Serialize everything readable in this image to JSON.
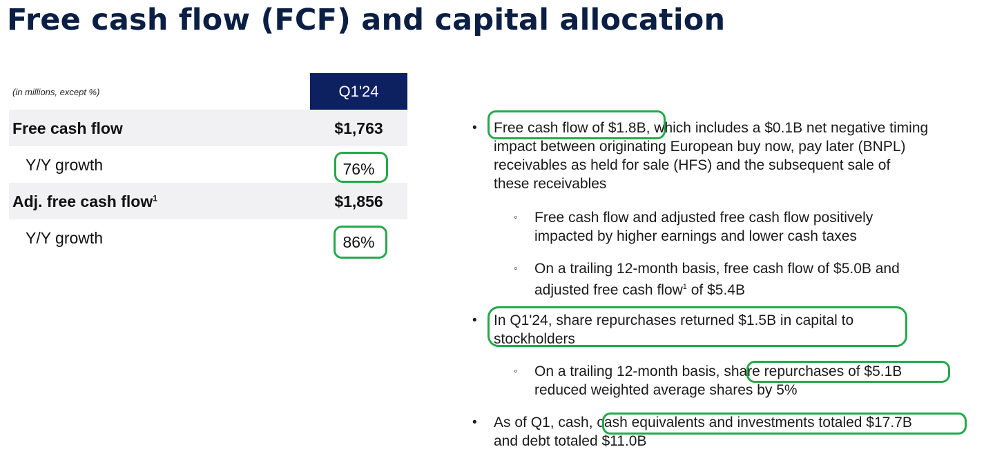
{
  "title": "Free cash flow (FCF) and capital allocation",
  "table": {
    "units_note": "(in millions, except %)",
    "column_header": "Q1'24",
    "rows": [
      {
        "label": "Free cash flow",
        "sup": "",
        "value": "$1,763"
      },
      {
        "label": "Y/Y growth",
        "sup": "",
        "value": "76%"
      },
      {
        "label": "Adj. free cash flow",
        "sup": "1",
        "value": "$1,856"
      },
      {
        "label": "Y/Y growth",
        "sup": "",
        "value": "86%"
      }
    ]
  },
  "bullets": {
    "b1": {
      "line1_highlight": "Free cash flow of $1.8B",
      "line1_rest": ", which includes a $0.1B net negative timing",
      "line2": "impact between originating European buy now, pay later (BNPL)",
      "line3": "receivables as held for sale (HFS) and the subsequent sale of",
      "line4": "these receivables"
    },
    "s1": {
      "line1": "Free cash flow and adjusted free cash flow positively",
      "line2": "impacted by higher earnings and lower cash taxes"
    },
    "s2": {
      "line1": "On a trailing 12-month basis, free cash flow of $5.0B and",
      "line2_a": "adjusted free cash flow",
      "line2_sup": "1",
      "line2_b": " of $5.4B"
    },
    "b2": {
      "line1": "In Q1'24, share repurchases returned $1.5B in capital to",
      "line2": "stockholders"
    },
    "s3": {
      "line1_a": "On a trailing 12-month basis, ",
      "line1_highlight": "share repurchases of $5.1B",
      "line2": "reduced weighted average shares by 5%"
    },
    "b3": {
      "line1_a": "As of Q1, cash, ",
      "line1_highlight": "cash equivalents and investments totaled $17.7B",
      "line2": "and debt totaled $11.0B"
    }
  },
  "colors": {
    "navy": "#0d2060",
    "highlight_green": "#23a84a",
    "row_shade": "#f1f1f4"
  }
}
